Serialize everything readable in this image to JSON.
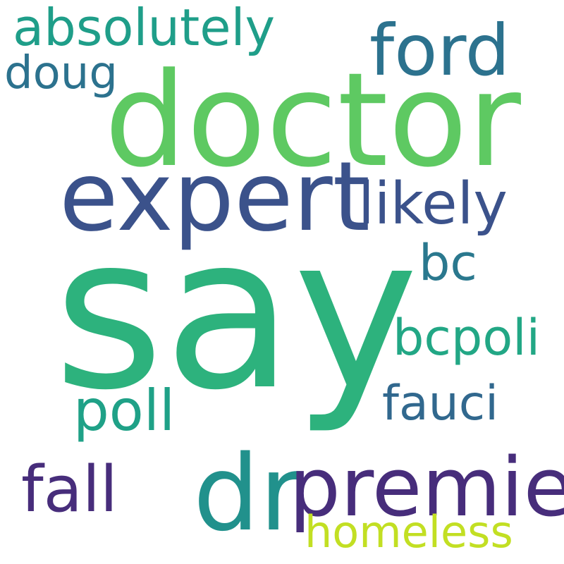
{
  "words": [
    {
      "key": "say",
      "text": "say",
      "color": "#2db27d"
    },
    {
      "key": "doctor",
      "text": "doctor",
      "color": "#5ec962"
    },
    {
      "key": "expert",
      "text": "expert",
      "color": "#3b528b"
    },
    {
      "key": "dr",
      "text": "dr",
      "color": "#21918c"
    },
    {
      "key": "premier",
      "text": "premier",
      "color": "#472d7b"
    },
    {
      "key": "ford",
      "text": "ford",
      "color": "#2c728e"
    },
    {
      "key": "likely",
      "text": "likely",
      "color": "#3b528b"
    },
    {
      "key": "fall",
      "text": "fall",
      "color": "#472d7b"
    },
    {
      "key": "poll",
      "text": "poll",
      "color": "#1fa187"
    },
    {
      "key": "fauci",
      "text": "fauci",
      "color": "#31688e"
    },
    {
      "key": "bcpoli",
      "text": "bcpoli",
      "color": "#22a785"
    },
    {
      "key": "bc",
      "text": "bc",
      "color": "#2a788e"
    },
    {
      "key": "absolutely",
      "text": "absolutely",
      "color": "#1f9e89"
    },
    {
      "key": "doug",
      "text": "doug",
      "color": "#2c728e"
    },
    {
      "key": "homeless",
      "text": "homeless",
      "color": "#c2df23"
    }
  ]
}
